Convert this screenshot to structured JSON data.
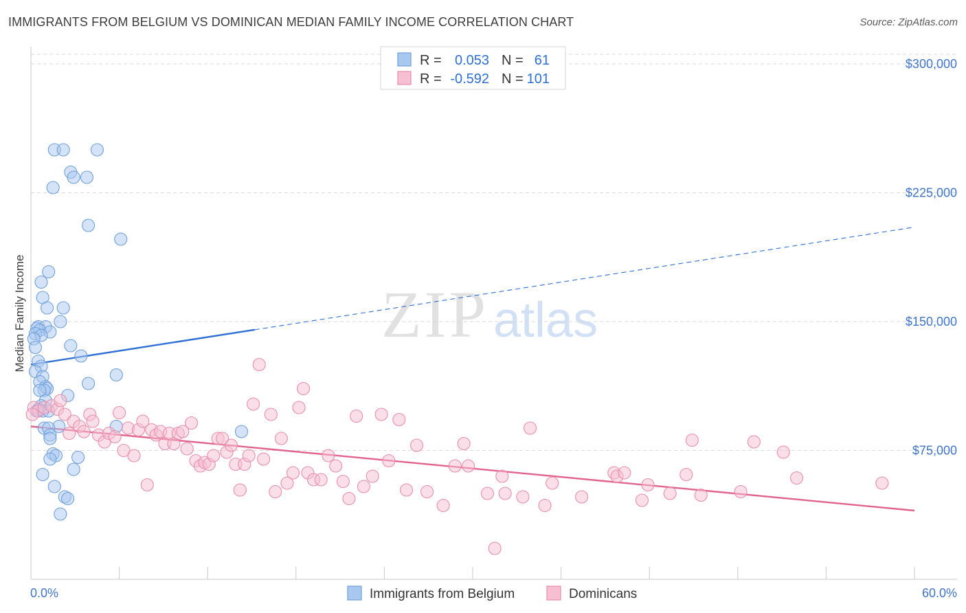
{
  "title": "IMMIGRANTS FROM BELGIUM VS DOMINICAN MEDIAN FAMILY INCOME CORRELATION CHART",
  "source": "Source: ZipAtlas.com",
  "watermark": {
    "zip": "ZIP",
    "atlas": "atlas"
  },
  "colors": {
    "blue_fill": "#a9c8ef",
    "blue_stroke": "#6d9fdc",
    "blue_line": "#2d6fd4",
    "pink_fill": "#f6bfd2",
    "pink_stroke": "#ea8cab",
    "pink_line": "#e2628f",
    "grid": "#d9d9d9",
    "axis_text": "#3f74c9"
  },
  "legend": {
    "rows": [
      {
        "r_label": "R =",
        "r_value": "0.053",
        "n_label": "N =",
        "n_value": "61"
      },
      {
        "r_label": "R =",
        "r_value": "-0.592",
        "n_label": "N =",
        "n_value": "101"
      }
    ]
  },
  "chart_data": {
    "type": "scatter",
    "title": "IMMIGRANTS FROM BELGIUM VS DOMINICAN MEDIAN FAMILY INCOME CORRELATION CHART",
    "xlabel": "",
    "ylabel": "Median Family Income",
    "xlim": [
      0,
      60
    ],
    "ylim": [
      0,
      310000
    ],
    "x_tick_labels": [
      "0.0%",
      "60.0%"
    ],
    "y_ticks": [
      75000,
      150000,
      225000,
      300000
    ],
    "y_tick_labels": [
      "$75,000",
      "$150,000",
      "$225,000",
      "$300,000"
    ],
    "grid": true,
    "series": [
      {
        "name": "Immigrants from Belgium",
        "color": "blue",
        "trend": {
          "x0": 0,
          "y0": 125000,
          "x_solid_end": 15.2,
          "x1": 60,
          "y1": 205000
        },
        "points": [
          [
            1.6,
            250000
          ],
          [
            2.2,
            250000
          ],
          [
            4.5,
            250000
          ],
          [
            2.7,
            237000
          ],
          [
            2.9,
            234000
          ],
          [
            3.8,
            234000
          ],
          [
            1.5,
            228000
          ],
          [
            3.9,
            206000
          ],
          [
            6.1,
            198000
          ],
          [
            1.2,
            179000
          ],
          [
            0.7,
            173000
          ],
          [
            0.8,
            164000
          ],
          [
            1.1,
            158000
          ],
          [
            2.2,
            158000
          ],
          [
            2.0,
            150000
          ],
          [
            0.5,
            147000
          ],
          [
            1.0,
            147000
          ],
          [
            0.4,
            146000
          ],
          [
            0.6,
            145000
          ],
          [
            1.3,
            144000
          ],
          [
            0.3,
            143000
          ],
          [
            0.7,
            142000
          ],
          [
            0.2,
            140000
          ],
          [
            2.7,
            136000
          ],
          [
            0.3,
            135000
          ],
          [
            3.4,
            130000
          ],
          [
            0.5,
            127000
          ],
          [
            0.7,
            124000
          ],
          [
            0.3,
            121000
          ],
          [
            5.8,
            119000
          ],
          [
            0.8,
            118000
          ],
          [
            0.6,
            115000
          ],
          [
            3.9,
            114000
          ],
          [
            1.0,
            112000
          ],
          [
            1.1,
            111000
          ],
          [
            0.9,
            110000
          ],
          [
            2.5,
            107000
          ],
          [
            1.0,
            104000
          ],
          [
            0.7,
            101000
          ],
          [
            0.5,
            99000
          ],
          [
            0.8,
            98000
          ],
          [
            1.2,
            98000
          ],
          [
            5.8,
            89000
          ],
          [
            1.9,
            89000
          ],
          [
            0.9,
            88000
          ],
          [
            1.2,
            88000
          ],
          [
            14.3,
            86000
          ],
          [
            1.3,
            84000
          ],
          [
            1.3,
            82000
          ],
          [
            1.5,
            73000
          ],
          [
            1.7,
            72000
          ],
          [
            3.2,
            71000
          ],
          [
            1.3,
            70000
          ],
          [
            2.9,
            64000
          ],
          [
            0.8,
            61000
          ],
          [
            1.6,
            54000
          ],
          [
            2.3,
            48000
          ],
          [
            2.5,
            47000
          ],
          [
            2.0,
            38000
          ],
          [
            0.4,
            98000
          ],
          [
            0.6,
            110000
          ]
        ]
      },
      {
        "name": "Dominicans",
        "color": "pink",
        "trend": {
          "x0": 0,
          "y0": 89000,
          "x1": 60,
          "y1": 40000
        },
        "points": [
          [
            0.2,
            100000
          ],
          [
            0.5,
            98000
          ],
          [
            0.1,
            96000
          ],
          [
            0.9,
            100000
          ],
          [
            1.4,
            101000
          ],
          [
            1.8,
            99000
          ],
          [
            2.0,
            104000
          ],
          [
            2.3,
            96000
          ],
          [
            2.6,
            85000
          ],
          [
            2.9,
            92000
          ],
          [
            3.3,
            89000
          ],
          [
            3.6,
            86000
          ],
          [
            4.0,
            96000
          ],
          [
            4.2,
            92000
          ],
          [
            4.6,
            84000
          ],
          [
            5.0,
            80000
          ],
          [
            5.3,
            85000
          ],
          [
            5.7,
            83000
          ],
          [
            6.0,
            97000
          ],
          [
            6.3,
            75000
          ],
          [
            6.6,
            88000
          ],
          [
            7.0,
            72000
          ],
          [
            7.3,
            87000
          ],
          [
            7.6,
            92000
          ],
          [
            7.9,
            55000
          ],
          [
            8.2,
            87000
          ],
          [
            8.5,
            84000
          ],
          [
            8.8,
            86000
          ],
          [
            9.1,
            79000
          ],
          [
            9.4,
            85000
          ],
          [
            9.7,
            79000
          ],
          [
            10.0,
            85000
          ],
          [
            10.3,
            86000
          ],
          [
            10.6,
            76000
          ],
          [
            10.9,
            91000
          ],
          [
            11.2,
            69000
          ],
          [
            11.5,
            66000
          ],
          [
            11.8,
            68000
          ],
          [
            12.1,
            67000
          ],
          [
            12.4,
            72000
          ],
          [
            12.7,
            82000
          ],
          [
            13.0,
            82000
          ],
          [
            13.3,
            74000
          ],
          [
            13.6,
            78000
          ],
          [
            13.9,
            67000
          ],
          [
            14.2,
            52000
          ],
          [
            14.5,
            67000
          ],
          [
            14.8,
            72000
          ],
          [
            15.1,
            102000
          ],
          [
            15.5,
            125000
          ],
          [
            15.8,
            70000
          ],
          [
            16.3,
            96000
          ],
          [
            16.6,
            51000
          ],
          [
            17.0,
            82000
          ],
          [
            17.4,
            56000
          ],
          [
            17.8,
            62000
          ],
          [
            18.2,
            100000
          ],
          [
            18.5,
            111000
          ],
          [
            18.8,
            62000
          ],
          [
            19.2,
            58000
          ],
          [
            19.7,
            58000
          ],
          [
            20.2,
            72000
          ],
          [
            20.7,
            66000
          ],
          [
            21.2,
            57000
          ],
          [
            21.6,
            47000
          ],
          [
            22.1,
            95000
          ],
          [
            22.6,
            54000
          ],
          [
            23.2,
            60000
          ],
          [
            23.8,
            96000
          ],
          [
            24.3,
            69000
          ],
          [
            25.0,
            93000
          ],
          [
            25.5,
            52000
          ],
          [
            26.2,
            78000
          ],
          [
            26.9,
            51000
          ],
          [
            28.0,
            43000
          ],
          [
            28.8,
            66000
          ],
          [
            29.4,
            79000
          ],
          [
            29.7,
            66000
          ],
          [
            31.0,
            50000
          ],
          [
            31.5,
            18000
          ],
          [
            32.0,
            60000
          ],
          [
            32.2,
            50000
          ],
          [
            33.4,
            48000
          ],
          [
            33.9,
            88000
          ],
          [
            34.9,
            43000
          ],
          [
            35.4,
            56000
          ],
          [
            37.4,
            48000
          ],
          [
            39.6,
            62000
          ],
          [
            39.8,
            60000
          ],
          [
            40.3,
            62000
          ],
          [
            41.5,
            46000
          ],
          [
            41.9,
            55000
          ],
          [
            43.4,
            50000
          ],
          [
            44.5,
            61000
          ],
          [
            44.9,
            81000
          ],
          [
            45.5,
            49000
          ],
          [
            48.2,
            51000
          ],
          [
            49.1,
            80000
          ],
          [
            51.1,
            74000
          ],
          [
            52.0,
            59000
          ],
          [
            57.8,
            56000
          ]
        ]
      }
    ],
    "legend_labels": [
      "Immigrants from Belgium",
      "Dominicans"
    ]
  }
}
